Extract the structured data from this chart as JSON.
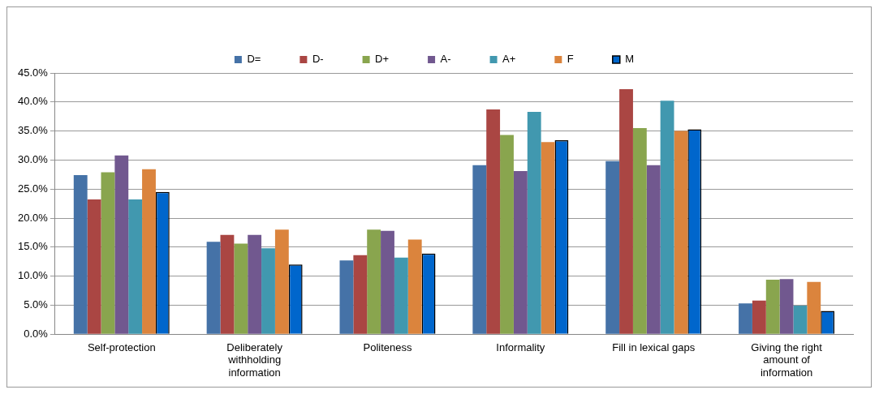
{
  "chart_data": {
    "type": "bar",
    "categories": [
      "Self-protection",
      "Deliberately withholding information",
      "Politeness",
      "Informality",
      "Fill in lexical gaps",
      "Giving the right amount of information"
    ],
    "series": [
      {
        "name": "D=",
        "color": "#4572a7",
        "values": [
          27.4,
          15.9,
          12.7,
          29.1,
          29.8,
          5.3
        ]
      },
      {
        "name": "D-",
        "color": "#aa4643",
        "values": [
          23.2,
          17.1,
          13.6,
          38.7,
          42.2,
          5.8
        ]
      },
      {
        "name": "D+",
        "color": "#89a54e",
        "values": [
          27.9,
          15.6,
          18.0,
          34.3,
          35.5,
          9.4
        ]
      },
      {
        "name": "A-",
        "color": "#71588f",
        "values": [
          30.8,
          17.1,
          17.8,
          28.1,
          29.1,
          9.5
        ]
      },
      {
        "name": "A+",
        "color": "#4198af",
        "values": [
          23.2,
          14.8,
          13.2,
          38.3,
          40.2,
          4.9
        ]
      },
      {
        "name": "F",
        "color": "#db843d",
        "values": [
          28.4,
          18.0,
          16.3,
          33.1,
          35.0,
          9.0
        ]
      },
      {
        "name": "M",
        "color": "#0066cc",
        "values": [
          24.5,
          12.0,
          13.9,
          33.4,
          35.3,
          4.0
        ]
      }
    ],
    "ylim": [
      0,
      45
    ],
    "yticks": [
      {
        "value": 0,
        "label": "0.0%"
      },
      {
        "value": 5,
        "label": "5.0%"
      },
      {
        "value": 10,
        "label": "10.0%"
      },
      {
        "value": 15,
        "label": "15.0%"
      },
      {
        "value": 20,
        "label": "20.0%"
      },
      {
        "value": 25,
        "label": "25.0%"
      },
      {
        "value": 30,
        "label": "30.0%"
      },
      {
        "value": 35,
        "label": "35.0%"
      },
      {
        "value": 40,
        "label": "40.0%"
      },
      {
        "value": 45,
        "label": "45.0%"
      }
    ],
    "grid": "y",
    "legend": "top"
  }
}
